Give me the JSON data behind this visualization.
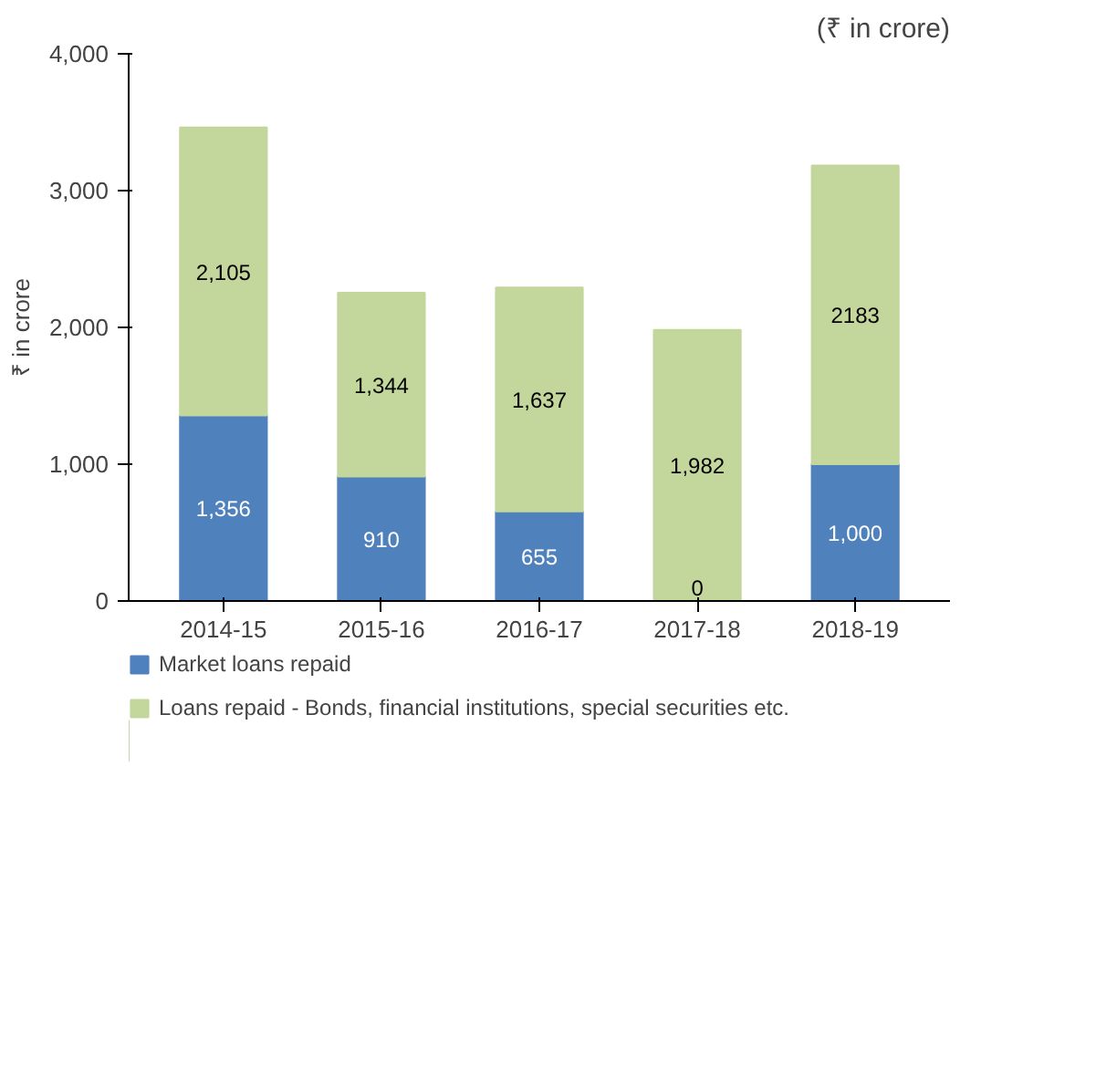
{
  "chart_data": {
    "type": "bar",
    "stacked": true,
    "ylabel": "₹ in crore",
    "annotations": [
      "(₹ in crore)"
    ],
    "categories": [
      "2014-15",
      "2015-16",
      "2016-17",
      "2017-18",
      "2018-19"
    ],
    "series": [
      {
        "name": "Market loans repaid",
        "color": "#4f81bd",
        "values": [
          1356,
          910,
          655,
          0,
          1000
        ],
        "value_labels": [
          "1,356",
          "910",
          "655",
          "0",
          "1,000"
        ]
      },
      {
        "name": "Loans repaid - Bonds, financial institutions, special securities etc.",
        "color": "#c3d69b",
        "values": [
          2105,
          1344,
          1637,
          1982,
          2183
        ],
        "value_labels": [
          "2,105",
          "1,344",
          "1,637",
          "1,982",
          "2183"
        ]
      }
    ],
    "ylim": [
      0,
      4000
    ],
    "yticks": [
      0,
      {
        "value": 1000,
        "label": "1,000"
      },
      {
        "value": 2000,
        "label": "2,000"
      },
      {
        "value": 3000,
        "label": "3,000"
      },
      {
        "value": 4000,
        "label": "4,000"
      }
    ],
    "grid": false,
    "legend": "bottom"
  }
}
